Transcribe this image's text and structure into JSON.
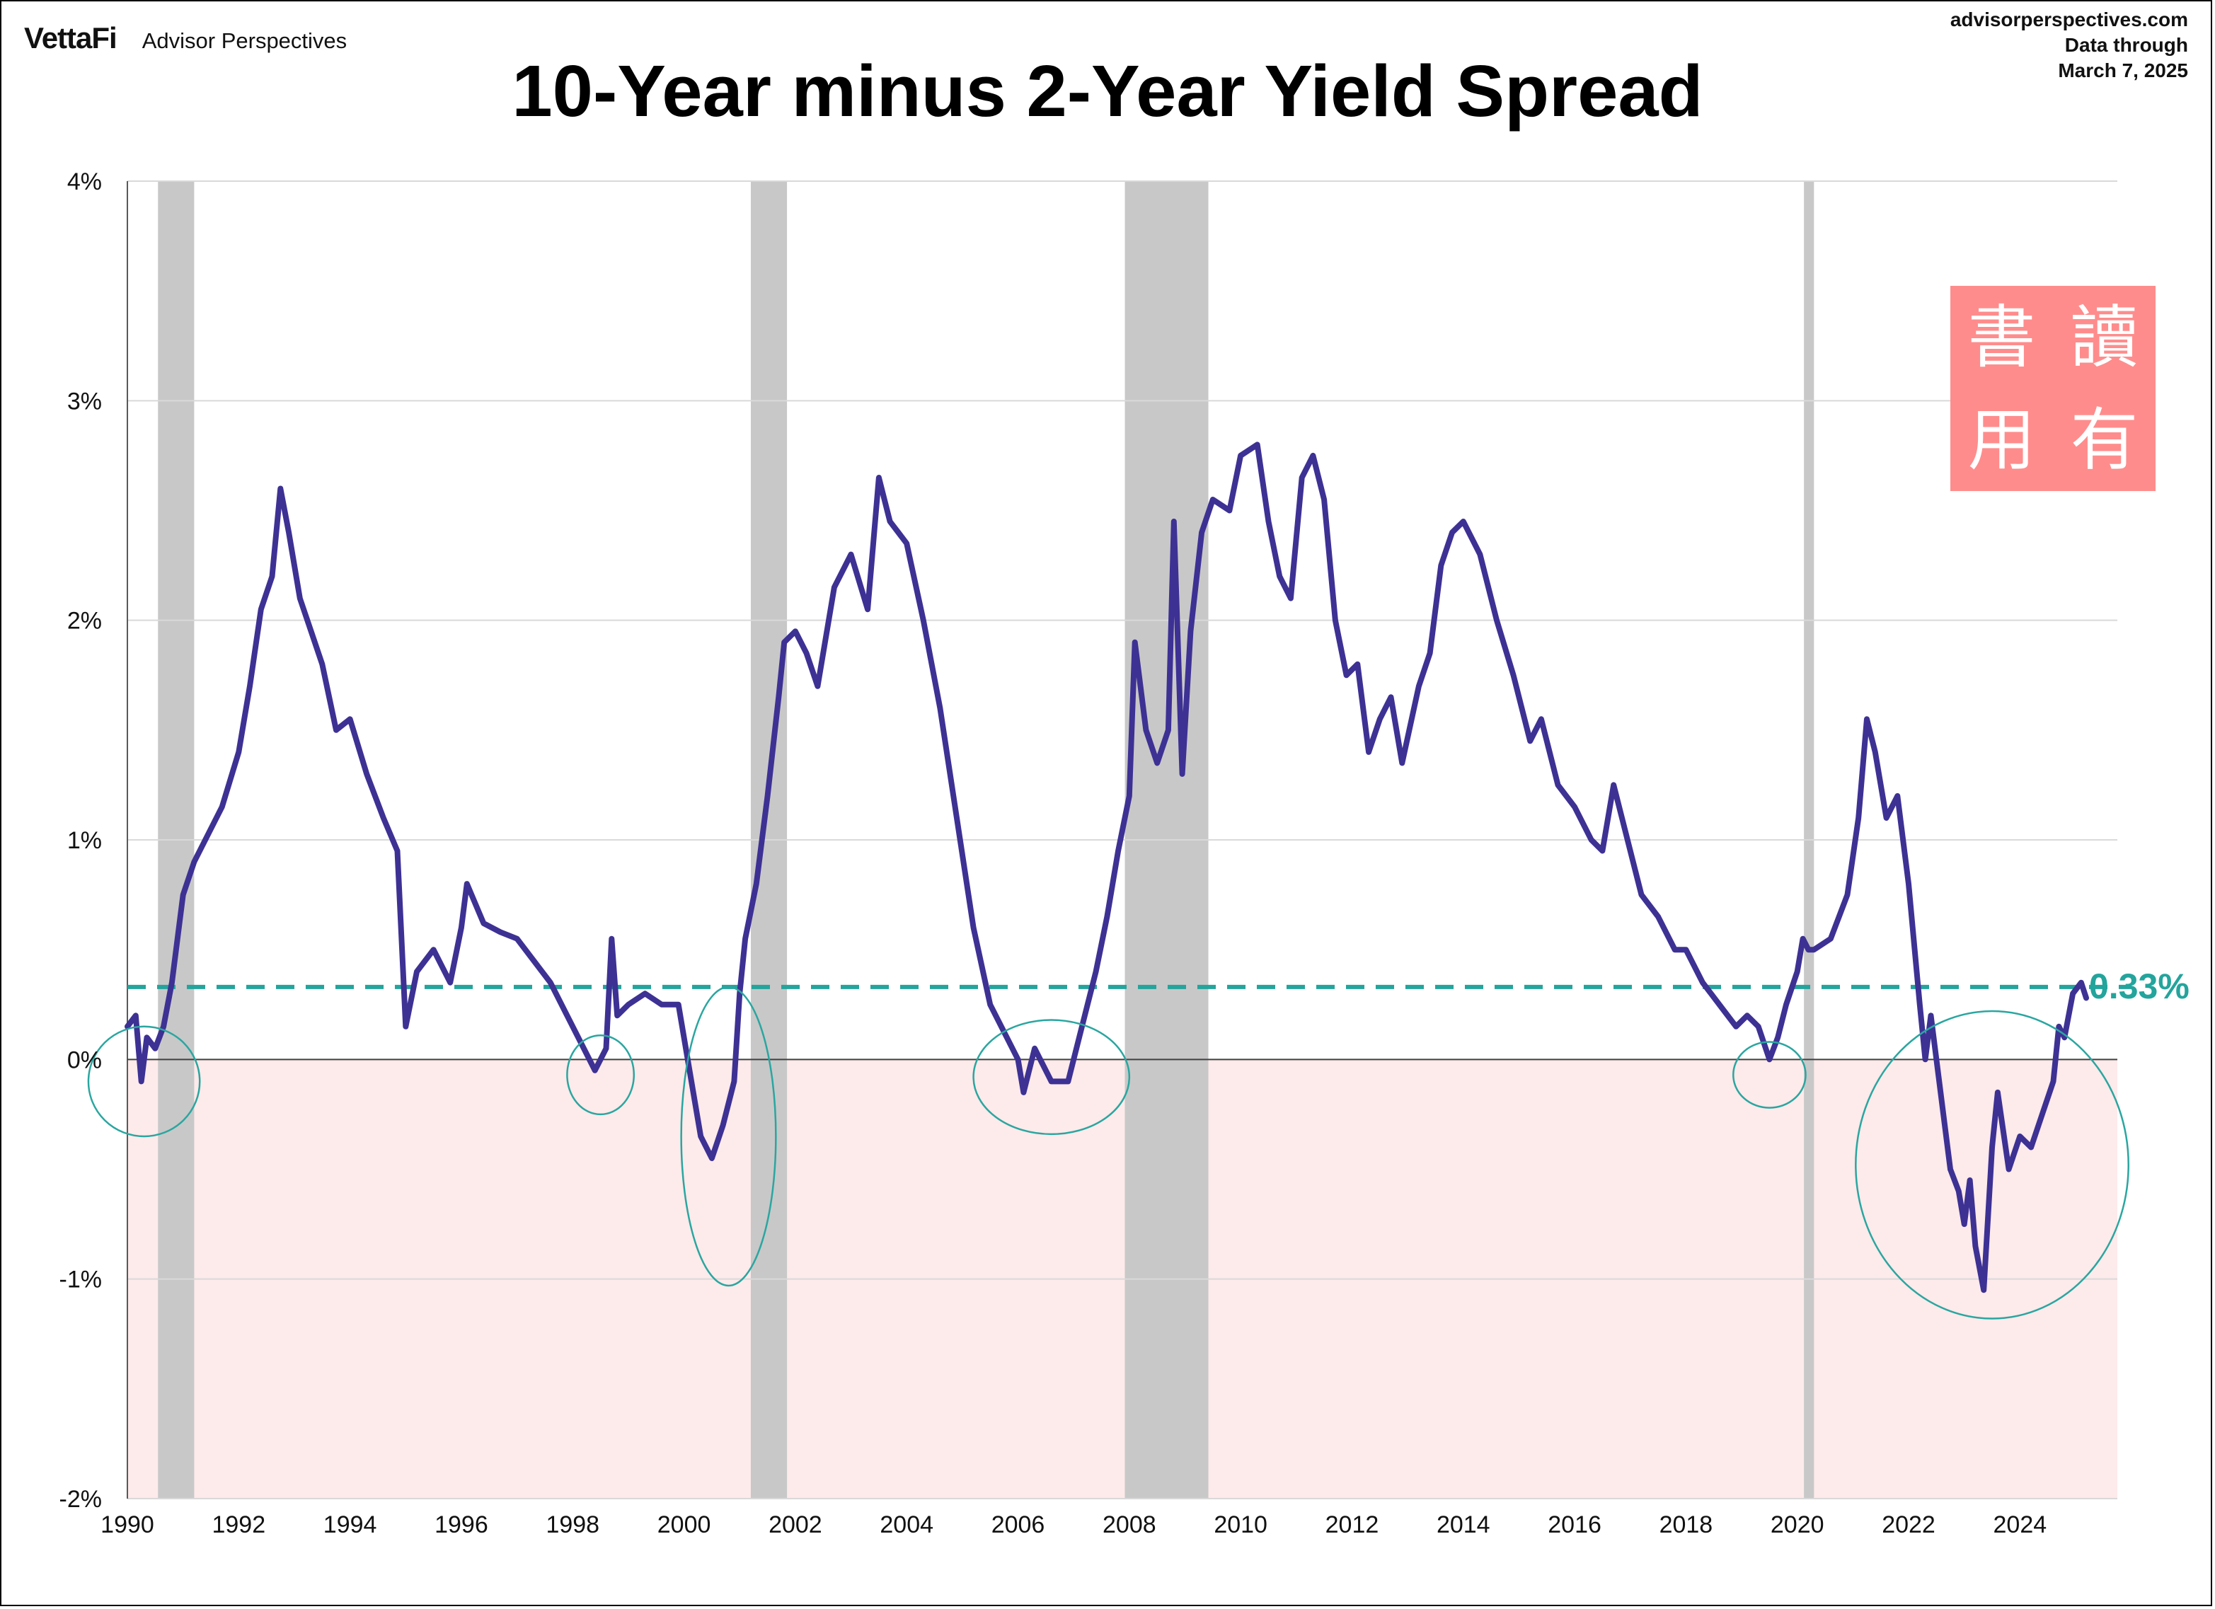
{
  "header": {
    "brand_logo": "VettaFi",
    "brand_name": "Advisor Perspectives",
    "site": "advisorperspectives.com",
    "data_through_label": "Data through",
    "data_date": "March 7, 2025"
  },
  "stamp": {
    "chars": [
      "書",
      "讀",
      "用",
      "有"
    ]
  },
  "colors": {
    "line": "#3d3194",
    "reference": "#23a49c",
    "recession": "#c8c8c8",
    "negative_zone": "#fdeaea",
    "circle": "#2aa6a0",
    "stamp": "#ff8c8c"
  },
  "chart_data": {
    "type": "line",
    "title": "10-Year minus 2-Year Yield Spread",
    "xlabel": "",
    "ylabel": "",
    "xlim": [
      1990,
      2025.75
    ],
    "ylim": [
      -2,
      4
    ],
    "yticks": [
      -2,
      -1,
      0,
      1,
      2,
      3,
      4
    ],
    "ytick_labels": [
      "-2%",
      "-1%",
      "0%",
      "1%",
      "2%",
      "3%",
      "4%"
    ],
    "xticks": [
      1990,
      1992,
      1994,
      1996,
      1998,
      2000,
      2002,
      2004,
      2006,
      2008,
      2010,
      2012,
      2014,
      2016,
      2018,
      2020,
      2022,
      2024
    ],
    "xtick_labels": [
      "1990",
      "1992",
      "1994",
      "1996",
      "1998",
      "2000",
      "2002",
      "2004",
      "2006",
      "2008",
      "2010",
      "2012",
      "2014",
      "2016",
      "2018",
      "2020",
      "2022",
      "2024"
    ],
    "grid": true,
    "reference_line": {
      "value": 0.33,
      "label": "0.33%"
    },
    "negative_shading": {
      "from": -2,
      "to": 0
    },
    "recessions": [
      {
        "start": 1990.55,
        "end": 1991.2
      },
      {
        "start": 2001.2,
        "end": 2001.85
      },
      {
        "start": 2007.92,
        "end": 2009.42
      },
      {
        "start": 2020.12,
        "end": 2020.3
      }
    ],
    "inversion_highlights": [
      {
        "cx": 1990.3,
        "cy": -0.1,
        "rx": 1.0,
        "ry": 0.25
      },
      {
        "cx": 1998.5,
        "cy": -0.07,
        "rx": 0.6,
        "ry": 0.18
      },
      {
        "cx": 2000.8,
        "cy": -0.35,
        "rx": 0.85,
        "ry": 0.68
      },
      {
        "cx": 2006.6,
        "cy": -0.08,
        "rx": 1.4,
        "ry": 0.26
      },
      {
        "cx": 2019.5,
        "cy": -0.07,
        "rx": 0.65,
        "ry": 0.15
      },
      {
        "cx": 2023.5,
        "cy": -0.48,
        "rx": 2.45,
        "ry": 0.7
      }
    ],
    "series": [
      {
        "name": "10-Year minus 2-Year Treasury spread",
        "x": [
          1990.0,
          1990.15,
          1990.25,
          1990.35,
          1990.5,
          1990.65,
          1990.8,
          1991.0,
          1991.2,
          1991.4,
          1991.7,
          1992.0,
          1992.2,
          1992.4,
          1992.6,
          1992.75,
          1992.9,
          1993.1,
          1993.3,
          1993.5,
          1993.75,
          1994.0,
          1994.3,
          1994.6,
          1994.85,
          1995.0,
          1995.2,
          1995.5,
          1995.8,
          1996.0,
          1996.1,
          1996.4,
          1996.7,
          1997.0,
          1997.3,
          1997.6,
          1997.9,
          1998.2,
          1998.4,
          1998.6,
          1998.7,
          1998.8,
          1999.0,
          1999.3,
          1999.6,
          1999.9,
          2000.1,
          2000.3,
          2000.5,
          2000.7,
          2000.9,
          2001.0,
          2001.1,
          2001.3,
          2001.5,
          2001.7,
          2001.8,
          2002.0,
          2002.2,
          2002.4,
          2002.7,
          2003.0,
          2003.3,
          2003.5,
          2003.7,
          2004.0,
          2004.3,
          2004.6,
          2004.9,
          2005.2,
          2005.5,
          2005.8,
          2006.0,
          2006.1,
          2006.3,
          2006.6,
          2006.9,
          2007.1,
          2007.4,
          2007.6,
          2007.8,
          2008.0,
          2008.1,
          2008.3,
          2008.5,
          2008.7,
          2008.8,
          2008.95,
          2009.1,
          2009.3,
          2009.5,
          2009.8,
          2010.0,
          2010.3,
          2010.5,
          2010.7,
          2010.9,
          2011.1,
          2011.3,
          2011.5,
          2011.7,
          2011.9,
          2012.1,
          2012.3,
          2012.5,
          2012.7,
          2012.9,
          2013.2,
          2013.4,
          2013.6,
          2013.8,
          2014.0,
          2014.3,
          2014.6,
          2014.9,
          2015.2,
          2015.4,
          2015.7,
          2016.0,
          2016.3,
          2016.5,
          2016.7,
          2016.9,
          2017.2,
          2017.5,
          2017.8,
          2018.0,
          2018.3,
          2018.6,
          2018.9,
          2019.1,
          2019.3,
          2019.5,
          2019.65,
          2019.8,
          2020.0,
          2020.1,
          2020.2,
          2020.3,
          2020.6,
          2020.9,
          2021.1,
          2021.25,
          2021.4,
          2021.6,
          2021.8,
          2022.0,
          2022.2,
          2022.3,
          2022.4,
          2022.6,
          2022.75,
          2022.9,
          2023.0,
          2023.1,
          2023.2,
          2023.35,
          2023.5,
          2023.6,
          2023.8,
          2024.0,
          2024.2,
          2024.4,
          2024.6,
          2024.7,
          2024.8,
          2024.95,
          2025.1,
          2025.19
        ],
        "y": [
          0.15,
          0.2,
          -0.1,
          0.1,
          0.05,
          0.15,
          0.35,
          0.75,
          0.9,
          1.0,
          1.15,
          1.4,
          1.7,
          2.05,
          2.2,
          2.6,
          2.4,
          2.1,
          1.95,
          1.8,
          1.5,
          1.55,
          1.3,
          1.1,
          0.95,
          0.15,
          0.4,
          0.5,
          0.35,
          0.6,
          0.8,
          0.62,
          0.58,
          0.55,
          0.45,
          0.35,
          0.2,
          0.05,
          -0.05,
          0.05,
          0.55,
          0.2,
          0.25,
          0.3,
          0.25,
          0.25,
          -0.05,
          -0.35,
          -0.45,
          -0.3,
          -0.1,
          0.3,
          0.55,
          0.8,
          1.2,
          1.65,
          1.9,
          1.95,
          1.85,
          1.7,
          2.15,
          2.3,
          2.05,
          2.65,
          2.45,
          2.35,
          2.0,
          1.6,
          1.1,
          0.6,
          0.25,
          0.1,
          0.0,
          -0.15,
          0.05,
          -0.1,
          -0.1,
          0.1,
          0.4,
          0.65,
          0.95,
          1.2,
          1.9,
          1.5,
          1.35,
          1.5,
          2.45,
          1.3,
          1.95,
          2.4,
          2.55,
          2.5,
          2.75,
          2.8,
          2.45,
          2.2,
          2.1,
          2.65,
          2.75,
          2.55,
          2.0,
          1.75,
          1.8,
          1.4,
          1.55,
          1.65,
          1.35,
          1.7,
          1.85,
          2.25,
          2.4,
          2.45,
          2.3,
          2.0,
          1.75,
          1.45,
          1.55,
          1.25,
          1.15,
          1.0,
          0.95,
          1.25,
          1.05,
          0.75,
          0.65,
          0.5,
          0.5,
          0.35,
          0.25,
          0.15,
          0.2,
          0.15,
          0.0,
          0.1,
          0.25,
          0.4,
          0.55,
          0.5,
          0.5,
          0.55,
          0.75,
          1.1,
          1.55,
          1.4,
          1.1,
          1.2,
          0.8,
          0.25,
          0.0,
          0.2,
          -0.2,
          -0.5,
          -0.6,
          -0.75,
          -0.55,
          -0.85,
          -1.05,
          -0.4,
          -0.15,
          -0.5,
          -0.35,
          -0.4,
          -0.25,
          -0.1,
          0.15,
          0.1,
          0.3,
          0.35,
          0.28
        ]
      }
    ]
  }
}
